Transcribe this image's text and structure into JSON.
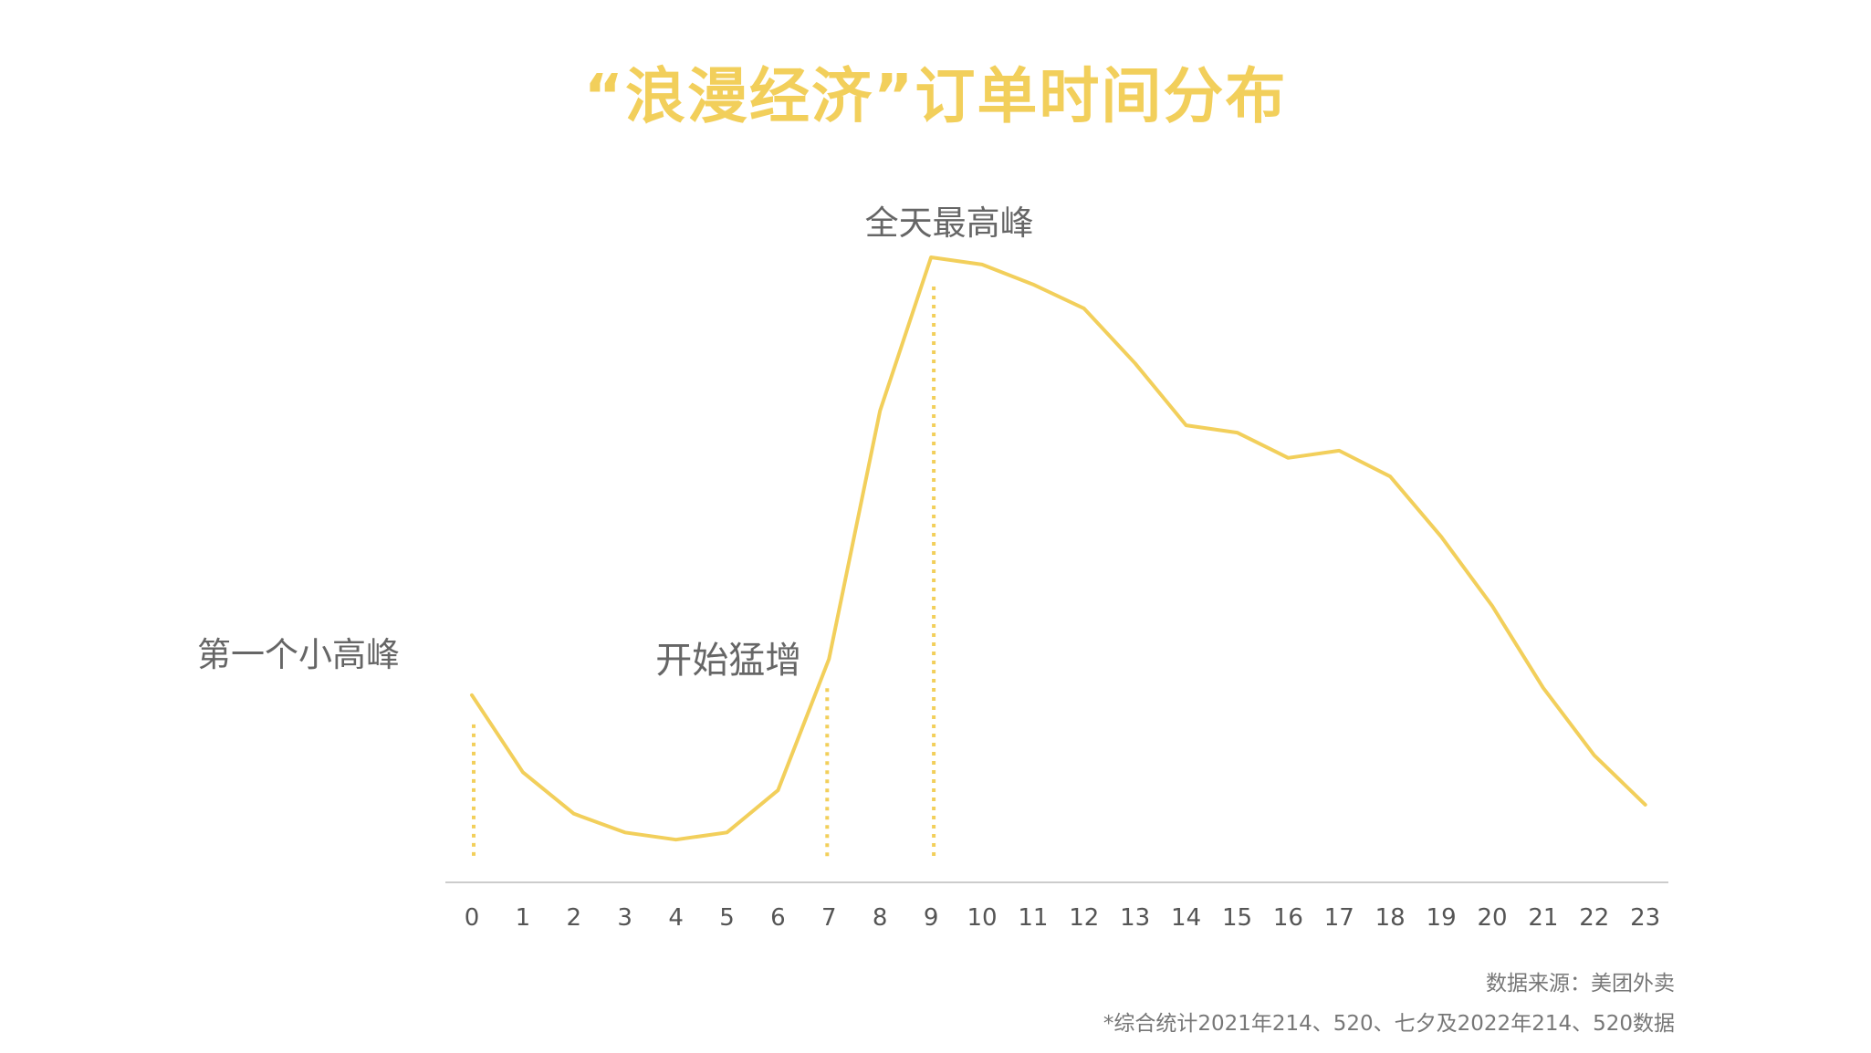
{
  "title": "“浪漫经济”订单时间分布",
  "footer": {
    "source": "数据来源：美团外卖",
    "note": "*综合统计2021年214、520、七夕及2022年214、520数据"
  },
  "colors": {
    "line": "#f2cf5b",
    "title": "#f2cf5b",
    "axis": "#cccccc",
    "tick_text": "#555555",
    "annotation_text": "#666666"
  },
  "chart_data": {
    "type": "line",
    "title": "“浪漫经济”订单时间分布",
    "xlabel": "",
    "ylabel": "",
    "categories": [
      "0",
      "1",
      "2",
      "3",
      "4",
      "5",
      "6",
      "7",
      "8",
      "9",
      "10",
      "11",
      "12",
      "13",
      "14",
      "15",
      "16",
      "17",
      "18",
      "19",
      "20",
      "21",
      "22",
      "23"
    ],
    "series": [
      {
        "values": [
          27.3,
          14.5,
          7.6,
          4.5,
          3.3,
          4.5,
          11.5,
          33.3,
          74.5,
          100,
          98.8,
          95.5,
          91.5,
          82.4,
          72.1,
          70.9,
          66.7,
          67.9,
          63.6,
          53.6,
          42.1,
          28.5,
          17.3,
          9.1
        ]
      }
    ],
    "ylim": [
      0,
      100
    ],
    "grid": false,
    "annotations": [
      {
        "category": "0",
        "text": "第一个小高峰",
        "marker": "dotted-drop-line"
      },
      {
        "category": "7",
        "text": "开始猛增",
        "marker": "dotted-drop-line"
      },
      {
        "category": "9",
        "text": "全天最高峰",
        "marker": "dotted-drop-line"
      }
    ]
  }
}
